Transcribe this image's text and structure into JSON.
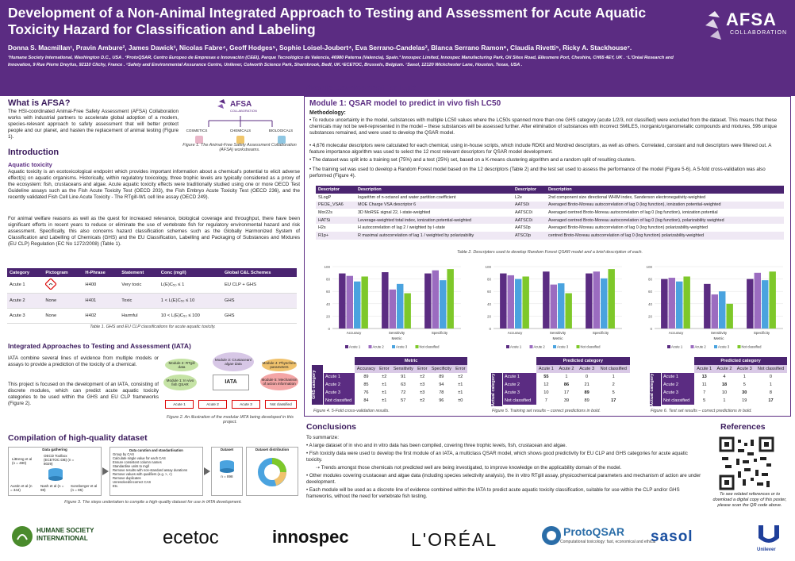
{
  "header": {
    "title": "Development of a Non-Animal Integrated Approach to Testing and Assessment for Acute Aquatic Toxicity Hazard for Classification and Labeling",
    "authors": "Donna S. Macmillan¹, Pravin Ambure², James Dawick³, Nicolas Fabre⁴, Geoff Hodges⁵, Sophie Loisel-Joubert⁴, Eva Serrano-Candelas², Blanca Serrano Ramon⁶, Claudia Rivetti⁵, Ricky A. Stackhouse⁷.",
    "affiliations": "¹Humane Society International, Washington D.C., USA . ²ProtoQSAR, Centro Europeo de Empresas e Innovación (CEEI), Parque Tecnológico de Valencia, 46980 Paterna (Valencia), Spain.³ Innospec Limited, Innospec Manufacturing Park, Oil Sites Road, Ellesmere Port, Cheshire, CH65 4EY, UK . ⁴L'Oréal Research and Innovation, 9 Rue Pierre Dreyfus, 92110 Clichy, France . ⁵Safety and Environmental Assurance Centre, Unilever, Colworth Science Park, Sharnbrook, Bedf, UK.⁶ECETOC, Brussels, Belgium. ⁷Sasol, 12120 Wickchester Lane, Houston, Texas, USA .",
    "logo_text": "AFSA",
    "logo_sub": "COLLABORATION"
  },
  "what": {
    "title": "What is AFSA?",
    "text": "The HSI-coordinated Animal-Free Safety Assessment (AFSA) Collaboration works with industrial partners to accelerate global adoption of a modern, species-relevant approach to safety assessment that will better protect people and our planet, and hasten the replacement of animal testing (Figure 1).",
    "fig_labels": [
      "COSMETICS",
      "CHEMICALS",
      "BIOLOGICALS"
    ],
    "fig_logo": "AFSA",
    "fig_logo_sub": "COLLABORATION",
    "caption": "Figure 1. The Animal-Free Safety Assessment Collaboration (AFSA) workstreams."
  },
  "intro": {
    "title": "Introduction",
    "subtitle": "Aquatic toxicity",
    "p1": "Aquatic toxicity is an ecotoxicological endpoint which provides important information about a chemical's potential to elicit adverse effect(s) on aquatic organisms. Historically, within regulatory toxicology, three trophic levels are typically considered as a proxy of the ecosystem: fish, crustaceans and algae. Acute aquatic toxicity effects were traditionally studied using one or more OECD Test Guideline assays such as the Fish Acute Toxicity Test (OECD 203), the Fish Embryo Acute Toxicity Test (OECD 236), and the recently validated Fish Cell Line Acute Toxicity - The RTgill-W1 cell line assay (OECD 249).",
    "p2": "For animal welfare reasons as well as the quest for increased relevance, biological coverage and throughput, there have been significant efforts in recent years to reduce or eliminate the use of vertebrate fish for regulatory environmental hazard and risk assessment. Specifically, this also concerns hazard classification schemes such as the Globally Harmonized System of Classification and Labelling of Chemicals (GHS) and the EU Classification, Labelling and Packaging of Substances and Mixtures (EU CLP) Regulation (EC No 1272/2008) (Table 1).",
    "table_headers": [
      "Category",
      "Pictogram",
      "H-Phrase",
      "Statement",
      "Conc (mg/l)",
      "Global C&L Schemes"
    ],
    "table_rows": [
      [
        "Acute 1",
        "",
        "H400",
        "Very toxic",
        "L(E)C₅₀ ≤ 1",
        "EU CLP + GHS"
      ],
      [
        "Acute 2",
        "None",
        "H401",
        "Toxic",
        "1 < L(E)C₅₀ ≤ 10",
        "GHS"
      ],
      [
        "Acute 3",
        "None",
        "H402",
        "Harmful",
        "10 < L(E)C₅₀ ≤ 100",
        "GHS"
      ]
    ],
    "caption": "Table 1. GHS and EU CLP classifications for acute aquatic toxicity."
  },
  "iata": {
    "title": "Integrated Approaches to Testing and Assessment (IATA)",
    "p1": "IATA combine several lines of evidence from multiple models or assays to provide a prediction of the toxicity of a chemical.",
    "p2": "This project is focused on the development of an IATA, consisting of discrete modules, which can predict acute aquatic toxicity categories to be used within the GHS and EU CLP frameworks (Figure 2).",
    "center": "IATA",
    "m2": "Module 2: RTgill data",
    "m3": "Module 3: Crustacean/ algae data",
    "m4": "Module 4: Physchem parameters",
    "m1": "Module 1: In vivo fish QSAR",
    "m5": "Module 5: Mechanism of action information",
    "outputs": [
      "Acute 1",
      "Acute 2",
      "Acute 3",
      "Not classified"
    ],
    "caption": "Figure 2. An illustration of the modular IATA being developed in this project."
  },
  "compilation": {
    "title": "Compilation of high-quality dataset",
    "box1": "Data gathering",
    "box2": "Data curation and standardisation",
    "box3": "Dataset",
    "box4": "Dataset distribution",
    "sources": [
      "LiBreng et al (n = 480)",
      "OECD Toolbox (ECETOC DB) (n = 8029)",
      "Austin et al (n = 344)",
      "Nash et al (n = 98)",
      "Sonnberger et al (n = 85)"
    ],
    "steps": [
      "Group by CAS",
      "Calculate single value for each CAS",
      "Ensure consistent column names",
      "Standardise units to mg/l",
      "Remove results with non-standard assay durations",
      "Remove values with qualifiers (e.g. >, <)",
      "Remove duplicates",
      "Unresolved/incorrect CAS",
      "Etc."
    ],
    "dataset_n": "n = 898",
    "caption": "Figure 3. The steps undertaken to compile a high-quality dataset for use in IATA development."
  },
  "module": {
    "section_title": "Module development for IATA",
    "title": "Module 1: QSAR model to predict in vivo fish LC50",
    "methodology": "Methodology:",
    "bullets": [
      "To reduce uncertainty in the model, substances with multiple LC50 values where the LC50s spanned more than one GHS category (acute 1/2/3, not classified) were excluded from the dataset. This means that these chemicals may not be well-represented in the model – these substances will be assessed further. After elimination of substances with incorrect SMILES, inorganic/organometallic compounds and mixtures, 596 unique substances remained, and were used to develop the QSAR model.",
      "4,676 molecular descriptors were calculated for each chemical, using in-house scripts, which include RDKit and Mordred descriptors, as well as others. Correlated, constant and null descriptors were filtered out. A feature importance algorithm was used to select the 12 most relevant descriptors for QSAR model development.",
      "The dataset was split into a training set (75%) and a test (25%) set, based on a K-means clustering algorithm and a random split of resulting clusters.",
      "The training set was used to develop a Random Forest model based on the 12 descriptors (Table 2) and the test set used to assess the performance of the model (Figure 5-6). A 5-fold cross-validation was also performed (Figure 4)."
    ],
    "desc_headers": [
      "Descriptor",
      "Description",
      "Descriptor",
      "Description"
    ],
    "desc_rows": [
      [
        "SLogP",
        "logarithm of n-octanol and water partition coefficient",
        "L2e",
        "2nd component size directional WHIM index, Sanderson electronegativity-weighted"
      ],
      [
        "PEOE_VSA6",
        "MOE Charge VSA descriptor 6",
        "AATS0i",
        "Averaged Broto-Moreau autocorrelation of lag 0 (log function), ionization potential-weighted"
      ],
      [
        "Mor22s",
        "3D MoRSE signal 22, I-state-weighted",
        "AATSC0i",
        "Averaged centred Broto-Moreau autocorrelation of lag 0 (log function), ionization potential"
      ],
      [
        "HATSi",
        "Leverage-weighted total index, ionization potential-weighted",
        "AATSC0i",
        "Averaged centred Broto-Moreau autocorrelation of lag 0 (log function), polarizability weighted"
      ],
      [
        "H2s",
        "H autocorrelation of lag 2 / weighted by I-state",
        "AATS0p",
        "Averaged Broto-Moreau autocorrelation of lag 0 (log function) polarizability-weighted"
      ],
      [
        "R1p+",
        "R maximal autocorrelation of lag 1 / weighted by polarizability",
        "ATSC0p",
        "centred Broto-Moreau autocorrelation of lag 0 (log function) polarizability-weighted"
      ]
    ],
    "table2_caption": "Table 2. Descriptors used to develop Random Forest QSAR model and a brief description of each.",
    "fig4_caption": "Figure 4. 5-Fold cross-validation results.",
    "fig5_caption": "Figure 5. Training set results – correct predictions in bold.",
    "fig6_caption": "Figure 6. Test set results – correct predictions in bold.",
    "metric_title": "Metric",
    "metric_cols": [
      "Accuracy",
      "Error",
      "Sensitivity",
      "Error",
      "Specificity",
      "Error"
    ],
    "metric_rows": [
      [
        "Acute 1",
        "89",
        "±2",
        "91",
        "±2",
        "89",
        "±2"
      ],
      [
        "Acute 2",
        "85",
        "±1",
        "63",
        "±3",
        "94",
        "±1"
      ],
      [
        "Acute 3",
        "76",
        "±1",
        "72",
        "±3",
        "78",
        "±1"
      ],
      [
        "Not classified",
        "84",
        "±1",
        "57",
        "±2",
        "96",
        "±0"
      ]
    ],
    "metric_side": "GHS category",
    "pred_title": "Predicted category",
    "pred_cols": [
      "Acute 1",
      "Acute 2",
      "Acute 3",
      "Not classified"
    ],
    "train_rows": [
      [
        "Acute 1",
        "55",
        "1",
        "0",
        "1"
      ],
      [
        "Acute 2",
        "12",
        "86",
        "21",
        "2"
      ],
      [
        "Acute 3",
        "10",
        "17",
        "89",
        "5"
      ],
      [
        "Not classified",
        "7",
        "39",
        "89",
        "17"
      ]
    ],
    "test_rows": [
      [
        "Acute 1",
        "13",
        "4",
        "1",
        "0"
      ],
      [
        "Acute 2",
        "11",
        "18",
        "5",
        "1"
      ],
      [
        "Acute 3",
        "7",
        "10",
        "30",
        "8"
      ],
      [
        "Not classified",
        "5",
        "1",
        "19",
        "17"
      ]
    ],
    "actual_side": "Actual category"
  },
  "chart_data": [
    {
      "type": "bar",
      "categories": [
        "Accuracy",
        "Sensitivity",
        "Specificity"
      ],
      "xlabel": "Metric",
      "ylim": [
        0,
        100
      ],
      "series": [
        {
          "name": "Acute 1",
          "values": [
            89,
            91,
            89
          ]
        },
        {
          "name": "Acute 2",
          "values": [
            85,
            63,
            94
          ]
        },
        {
          "name": "Acute 3",
          "values": [
            76,
            72,
            78
          ]
        },
        {
          "name": "Not classified",
          "values": [
            84,
            57,
            96
          ]
        }
      ]
    },
    {
      "type": "bar",
      "categories": [
        "Accuracy",
        "Sensitivity",
        "Specificity"
      ],
      "xlabel": "Metric",
      "ylim": [
        0,
        100
      ],
      "series": [
        {
          "name": "Acute 1",
          "values": [
            89,
            92,
            89
          ]
        },
        {
          "name": "Acute 2",
          "values": [
            86,
            71,
            92
          ]
        },
        {
          "name": "Acute 3",
          "values": [
            80,
            73,
            81
          ]
        },
        {
          "name": "Not classified",
          "values": [
            84,
            57,
            96
          ]
        }
      ]
    },
    {
      "type": "bar",
      "categories": [
        "Accuracy",
        "Sensitivity",
        "Specificity"
      ],
      "xlabel": "Metric",
      "ylim": [
        0,
        100
      ],
      "series": [
        {
          "name": "Acute 1",
          "values": [
            80,
            72,
            80
          ]
        },
        {
          "name": "Acute 2",
          "values": [
            82,
            55,
            90
          ]
        },
        {
          "name": "Acute 3",
          "values": [
            76,
            60,
            78
          ]
        },
        {
          "name": "Not classified",
          "values": [
            84,
            40,
            92
          ]
        }
      ]
    }
  ],
  "legend_labels": [
    "Acute 1",
    "Acute 2",
    "Acute 3",
    "Not classified"
  ],
  "colors": {
    "s1": "#5b2c82",
    "s2": "#9b6cc0",
    "s3": "#4aa3df",
    "s4": "#7ec82a"
  },
  "conclusions": {
    "title": "Conclusions",
    "intro": "To summarize:",
    "items": [
      "A large dataset of in vivo and in vitro data has been compiled, covering three trophic levels, fish, crustacean and algae.",
      "Fish toxicity data were used to develop the first module of an IATA, a multiclass QSAR model, which shows good predictivity for EU CLP and GHS categories for acute aquatic toxicity.",
      "⇢ Trends amongst those chemicals not predicted well are being investigated, to improve knowledge on the applicability domain of the model.",
      "Other modules covering crustacean and algae data (including species selectivity analysis), the in vitro RTgill assay, physicochemical parameters and mechanism of action are under development.",
      "Each module will be used as a discrete line of evidence combined within the IATA to predict acute aquatic toxicity classification, suitable for use within the CLP and/or GHS frameworks, without the need for vertebrate fish testing."
    ]
  },
  "references": {
    "title": "References",
    "text": "To see related references or to download a digital copy of this poster, please scan the QR code above."
  },
  "sponsors": [
    "HUMANE SOCIETY INTERNATIONAL",
    "ecetoc",
    "innospec",
    "L'ORÉAL",
    "ProtoQSAR",
    "sasol",
    "Unilever"
  ],
  "protoqsar_sub": "Computational toxicology: fast, economical and ethical"
}
